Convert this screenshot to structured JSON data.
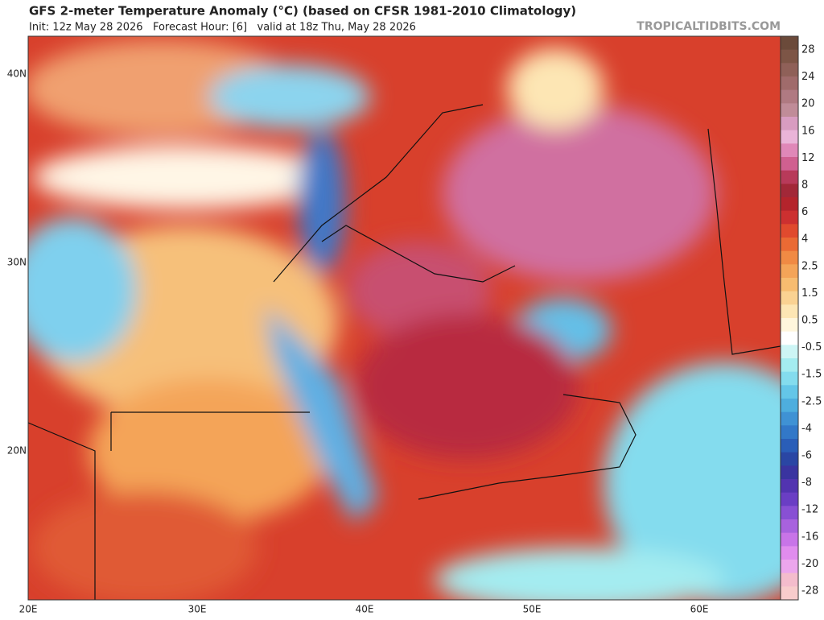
{
  "header": {
    "title": "GFS 2-meter Temperature Anomaly (°C) (based on CFSR 1981-2010 Climatology)",
    "subtitle": "Init: 12z May 28 2026   Forecast Hour: [6]   valid at 18z Thu, May 28 2026",
    "site": "TROPICALTIDBITS.COM"
  },
  "map": {
    "lat_labels": [
      "40N",
      "30N",
      "20N"
    ],
    "lon_labels": [
      "20E",
      "30E",
      "40E",
      "50E",
      "60E"
    ]
  },
  "colorbar": {
    "labels": [
      "28",
      "24",
      "20",
      "16",
      "12",
      "8",
      "6",
      "4",
      "2.5",
      "1.5",
      "0.5",
      "-0.5",
      "-1.5",
      "-2.5",
      "-4",
      "-6",
      "-8",
      "-12",
      "-16",
      "-20",
      "-28"
    ],
    "colors": [
      "#6b4a3a",
      "#7d5546",
      "#8f6058",
      "#a06b6b",
      "#b07a82",
      "#c08c98",
      "#d89cc0",
      "#eab4d8",
      "#e088b8",
      "#d06090",
      "#b83a5a",
      "#a22838",
      "#b4242c",
      "#cc3030",
      "#e04a2e",
      "#ea6a34",
      "#f08a44",
      "#f4a458",
      "#f7bc70",
      "#fad292",
      "#fde6b4",
      "#fff6dc",
      "#ffffff",
      "#cdf5f5",
      "#a4ecf0",
      "#84dcee",
      "#64c6e8",
      "#4eaede",
      "#3f92d4",
      "#3278c8",
      "#2a5eb8",
      "#2a46a4",
      "#3a34a0",
      "#5234b0",
      "#6a3ec4",
      "#8850d4",
      "#a862de",
      "#c874e8",
      "#e08cee",
      "#eca6ec",
      "#f4bccc",
      "#f8cccc"
    ]
  }
}
